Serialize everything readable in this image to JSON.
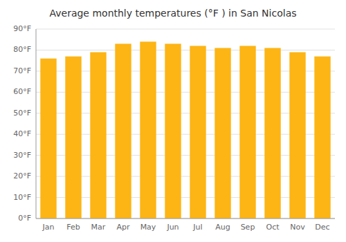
{
  "chart_data": {
    "type": "bar",
    "title": "Average monthly temperatures (°F ) in San Nicolas",
    "categories": [
      "Jan",
      "Feb",
      "Mar",
      "Apr",
      "May",
      "Jun",
      "Jul",
      "Aug",
      "Sep",
      "Oct",
      "Nov",
      "Dec"
    ],
    "values": [
      76,
      77,
      79,
      83,
      84,
      83,
      82,
      81,
      82,
      81,
      79,
      77
    ],
    "color": "#FDB515",
    "ylim": [
      0,
      90
    ],
    "yticks": [
      {
        "value": 0,
        "label": "0°F"
      },
      {
        "value": 10,
        "label": "10°F"
      },
      {
        "value": 20,
        "label": "20°F"
      },
      {
        "value": 30,
        "label": "30°F"
      },
      {
        "value": 40,
        "label": "40°F"
      },
      {
        "value": 50,
        "label": "50°F"
      },
      {
        "value": 60,
        "label": "60°F"
      },
      {
        "value": 70,
        "label": "70°F"
      },
      {
        "value": 80,
        "label": "80°F"
      },
      {
        "value": 90,
        "label": "90°F"
      }
    ],
    "grid": true
  }
}
